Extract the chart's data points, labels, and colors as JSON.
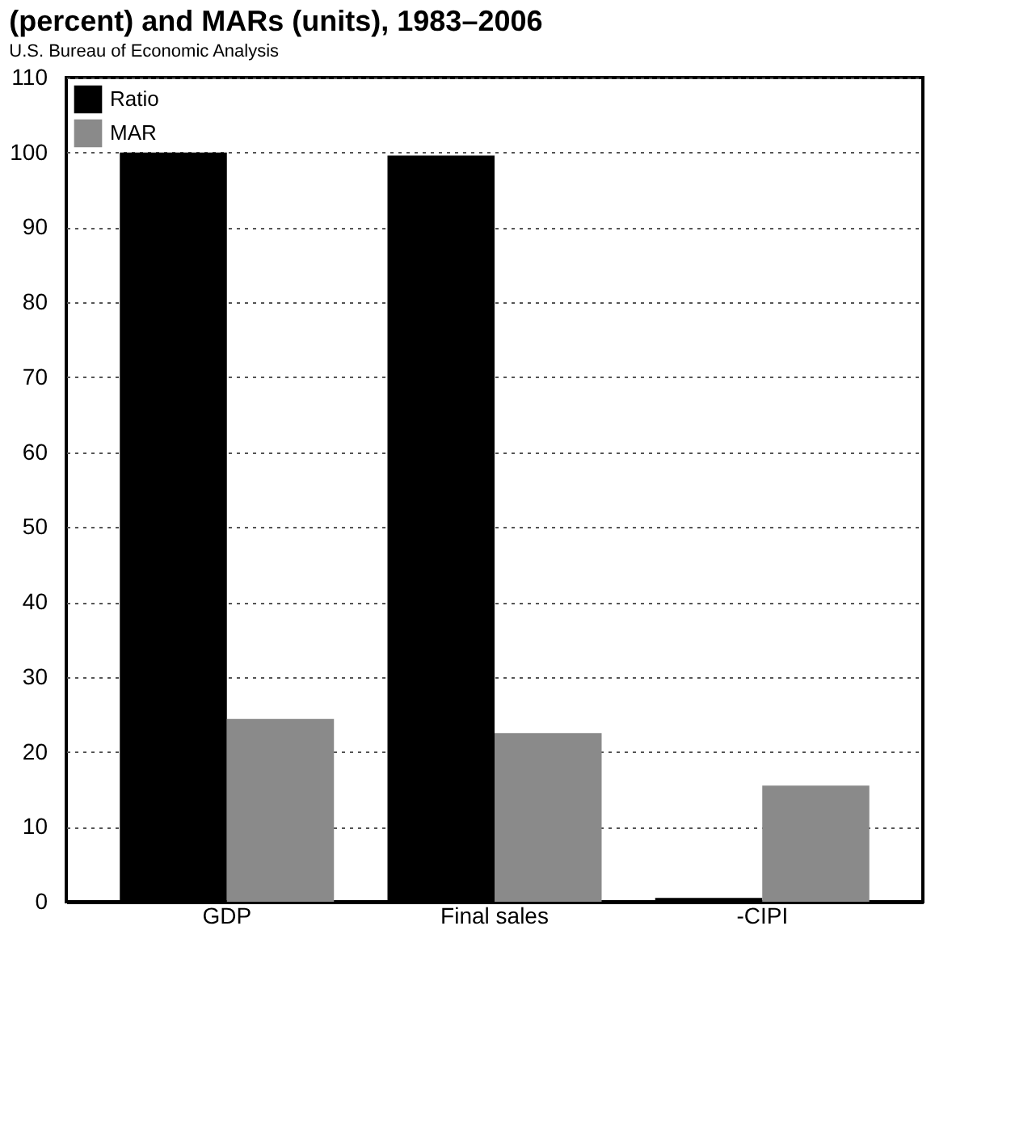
{
  "chart_data": {
    "type": "bar",
    "title": "(percent) and MARs (units), 1983–2006",
    "categories": [
      "GDP",
      "Final sales",
      "-CIPI"
    ],
    "series": [
      {
        "name": "Ratio",
        "color": "#000000",
        "values": [
          100,
          99.6,
          0.5
        ]
      },
      {
        "name": "MAR",
        "color": "#8a8a8a",
        "values": [
          24.4,
          22.5,
          15.5
        ]
      }
    ],
    "ylim": [
      0,
      110
    ],
    "yticks": [
      0,
      10,
      20,
      30,
      40,
      50,
      60,
      70,
      80,
      90,
      100,
      110
    ],
    "grid": "y",
    "legend": "top left",
    "annotations": [
      "U.S. Bureau of Economic Analysis"
    ]
  }
}
